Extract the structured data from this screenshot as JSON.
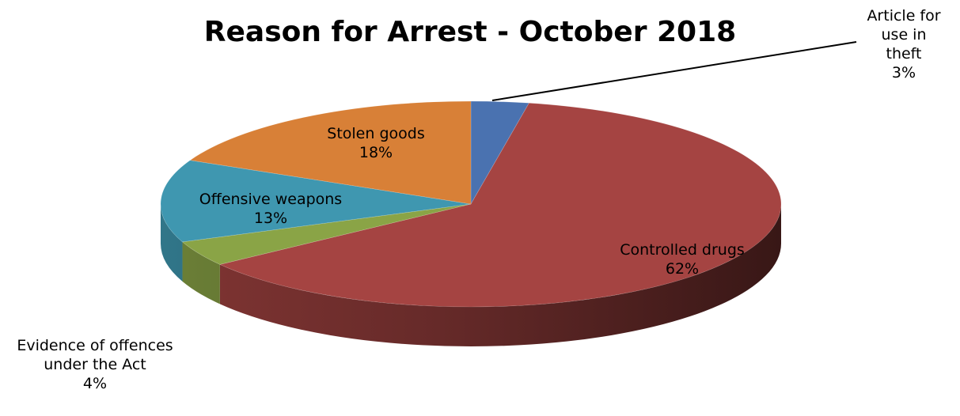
{
  "chart_data": {
    "type": "pie",
    "title": "Reason for Arrest - October 2018",
    "slices": [
      {
        "label_lines": [
          "Article for",
          "use in",
          "theft"
        ],
        "pct_label": "3%",
        "value": 3,
        "color": "#4A72B0"
      },
      {
        "label_lines": [
          "Controlled drugs"
        ],
        "pct_label": "62%",
        "value": 62,
        "color": "#A54442"
      },
      {
        "label_lines": [
          "Evidence of offences",
          "under the Act"
        ],
        "pct_label": "4%",
        "value": 4,
        "color": "#8AA446"
      },
      {
        "label_lines": [
          "Offensive weapons"
        ],
        "pct_label": "13%",
        "value": 13,
        "color": "#3F97B0"
      },
      {
        "label_lines": [
          "Stolen goods"
        ],
        "pct_label": "18%",
        "value": 18,
        "color": "#D88037"
      }
    ],
    "legend": "none",
    "three_d": true
  }
}
